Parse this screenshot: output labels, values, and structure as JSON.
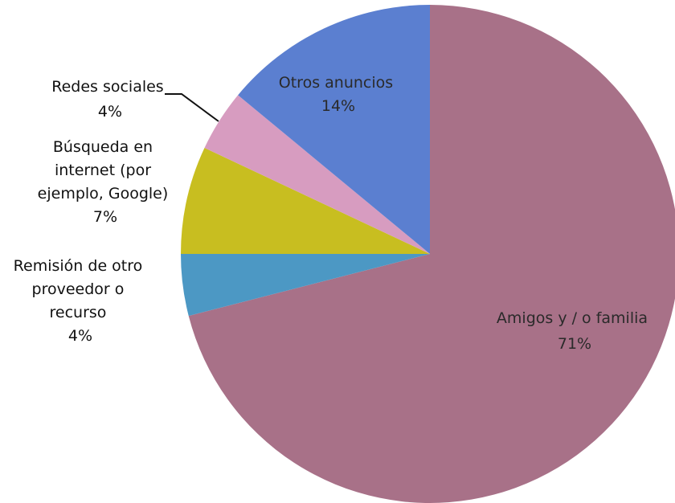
{
  "chart_data": {
    "type": "pie",
    "title": "",
    "slices": [
      {
        "label_lines": [
          "Amigos y / o familia"
        ],
        "pct_label": "71%",
        "value": 71,
        "color": "#A87188"
      },
      {
        "label_lines": [
          "Remisión de otro",
          "proveedor o",
          "recurso"
        ],
        "pct_label": "4%",
        "value": 4,
        "color": "#4C98C4"
      },
      {
        "label_lines": [
          "Búsqueda en",
          "internet (por",
          "ejemplo, Google)"
        ],
        "pct_label": "7%",
        "value": 7,
        "color": "#C8BE20"
      },
      {
        "label_lines": [
          "Redes sociales"
        ],
        "pct_label": "4%",
        "value": 4,
        "color": "#D79CC0"
      },
      {
        "label_lines": [
          "Otros anuncios"
        ],
        "pct_label": "14%",
        "value": 14,
        "color": "#5B7FD0"
      }
    ]
  }
}
